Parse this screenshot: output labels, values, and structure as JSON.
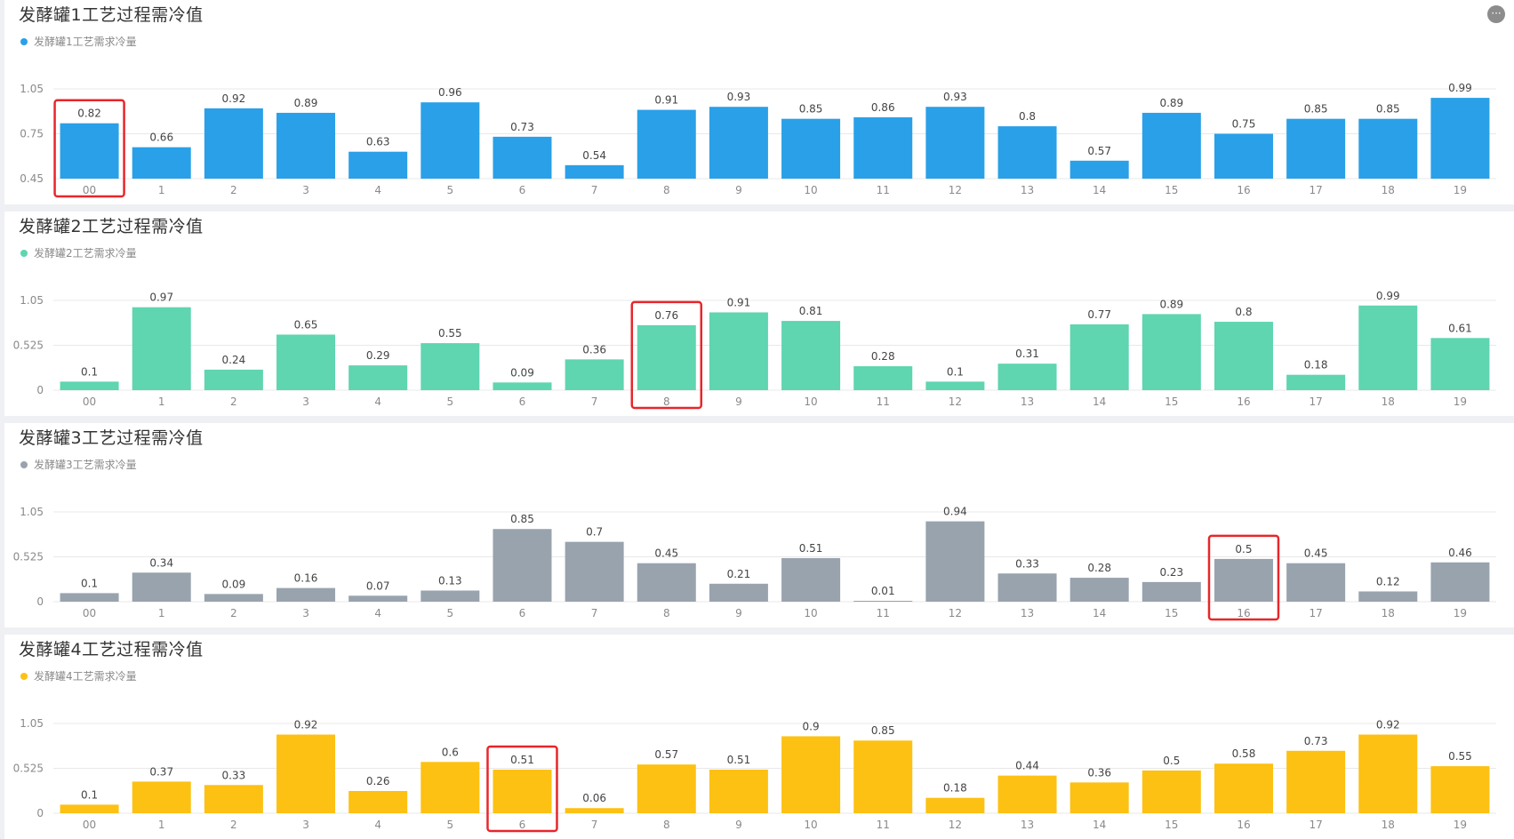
{
  "more_button_label": "···",
  "charts": [
    {
      "title": "发酵罐1工艺过程需冷值",
      "legend": "发酵罐1工艺需求冷量",
      "color": "#2aa0e8",
      "highlight_index": 0
    },
    {
      "title": "发酵罐2工艺过程需冷值",
      "legend": "发酵罐2工艺需求冷量",
      "color": "#5fd5b0",
      "highlight_index": 8
    },
    {
      "title": "发酵罐3工艺过程需冷值",
      "legend": "发酵罐3工艺需求冷量",
      "color": "#98a3ae",
      "highlight_index": 16
    },
    {
      "title": "发酵罐4工艺过程需冷值",
      "legend": "发酵罐4工艺需求冷量",
      "color": "#fdc113",
      "highlight_index": 6
    }
  ],
  "chart_data": [
    {
      "type": "bar",
      "title": "发酵罐1工艺过程需冷值",
      "categories": [
        "00",
        "1",
        "2",
        "3",
        "4",
        "5",
        "6",
        "7",
        "8",
        "9",
        "10",
        "11",
        "12",
        "13",
        "14",
        "15",
        "16",
        "17",
        "18",
        "19"
      ],
      "series": [
        {
          "name": "发酵罐1工艺需求冷量",
          "values": [
            0.82,
            0.66,
            0.92,
            0.89,
            0.63,
            0.96,
            0.73,
            0.54,
            0.91,
            0.93,
            0.85,
            0.86,
            0.93,
            0.8,
            0.57,
            0.89,
            0.75,
            0.85,
            0.85,
            0.99
          ]
        }
      ],
      "yticks": [
        "0.45",
        "0.75",
        "1.05"
      ],
      "ylim": [
        0.45,
        1.05
      ],
      "grid": true,
      "legend_position": "top-left"
    },
    {
      "type": "bar",
      "title": "发酵罐2工艺过程需冷值",
      "categories": [
        "00",
        "1",
        "2",
        "3",
        "4",
        "5",
        "6",
        "7",
        "8",
        "9",
        "10",
        "11",
        "12",
        "13",
        "14",
        "15",
        "16",
        "17",
        "18",
        "19"
      ],
      "series": [
        {
          "name": "发酵罐2工艺需求冷量",
          "values": [
            0.1,
            0.97,
            0.24,
            0.65,
            0.29,
            0.55,
            0.09,
            0.36,
            0.76,
            0.91,
            0.81,
            0.28,
            0.1,
            0.31,
            0.77,
            0.89,
            0.8,
            0.18,
            0.99,
            0.61
          ]
        }
      ],
      "yticks": [
        "0",
        "0.525",
        "1.05"
      ],
      "ylim": [
        0,
        1.05
      ],
      "grid": true,
      "legend_position": "top-left"
    },
    {
      "type": "bar",
      "title": "发酵罐3工艺过程需冷值",
      "categories": [
        "00",
        "1",
        "2",
        "3",
        "4",
        "5",
        "6",
        "7",
        "8",
        "9",
        "10",
        "11",
        "12",
        "13",
        "14",
        "15",
        "16",
        "17",
        "18",
        "19"
      ],
      "series": [
        {
          "name": "发酵罐3工艺需求冷量",
          "values": [
            0.1,
            0.34,
            0.09,
            0.16,
            0.07,
            0.13,
            0.85,
            0.7,
            0.45,
            0.21,
            0.51,
            0.01,
            0.94,
            0.33,
            0.28,
            0.23,
            0.5,
            0.45,
            0.12,
            0.46
          ]
        }
      ],
      "yticks": [
        "0",
        "0.525",
        "1.05"
      ],
      "ylim": [
        0,
        1.05
      ],
      "grid": true,
      "legend_position": "top-left"
    },
    {
      "type": "bar",
      "title": "发酵罐4工艺过程需冷值",
      "categories": [
        "00",
        "1",
        "2",
        "3",
        "4",
        "5",
        "6",
        "7",
        "8",
        "9",
        "10",
        "11",
        "12",
        "13",
        "14",
        "15",
        "16",
        "17",
        "18",
        "19"
      ],
      "series": [
        {
          "name": "发酵罐4工艺需求冷量",
          "values": [
            0.1,
            0.37,
            0.33,
            0.92,
            0.26,
            0.6,
            0.51,
            0.06,
            0.57,
            0.51,
            0.9,
            0.85,
            0.18,
            0.44,
            0.36,
            0.5,
            0.58,
            0.73,
            0.92,
            0.55
          ]
        }
      ],
      "yticks": [
        "0",
        "0.525",
        "1.05"
      ],
      "ylim": [
        0,
        1.05
      ],
      "grid": true,
      "legend_position": "top-left"
    }
  ]
}
